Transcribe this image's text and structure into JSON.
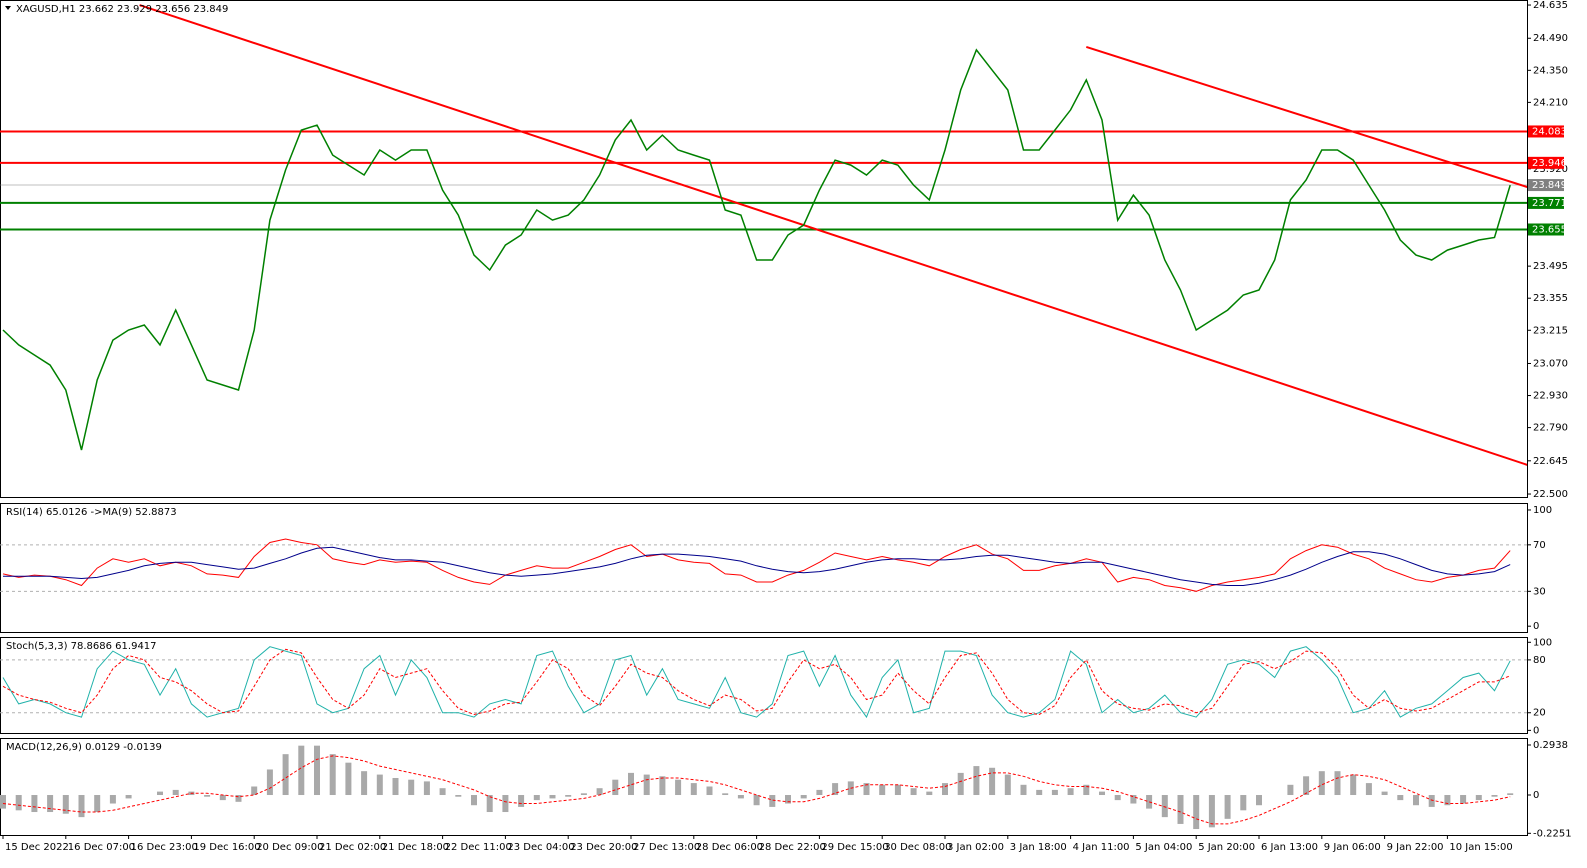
{
  "chart_data": [
    {
      "type": "line",
      "title": "XAGUSD,H1  23.662 23.929 23.656 23.849",
      "categories": [
        "15 Dec 2022",
        null,
        null,
        null,
        "16 Dec 07:00",
        null,
        null,
        null,
        "16 Dec 23:00",
        null,
        null,
        null,
        "19 Dec 16:00",
        null,
        null,
        null,
        "20 Dec 09:00",
        null,
        null,
        null,
        "21 Dec 02:00",
        null,
        null,
        null,
        "21 Dec 18:00",
        null,
        null,
        null,
        "22 Dec 11:00",
        null,
        null,
        null,
        "23 Dec 04:00",
        null,
        null,
        null,
        "23 Dec 20:00",
        null,
        null,
        null,
        "27 Dec 13:00",
        null,
        null,
        null,
        "28 Dec 06:00",
        null,
        null,
        null,
        "28 Dec 22:00",
        null,
        null,
        null,
        "29 Dec 15:00",
        null,
        null,
        null,
        "30 Dec 08:00",
        null,
        null,
        null,
        "3 Jan 02:00",
        null,
        null,
        null,
        "3 Jan 18:00",
        null,
        null,
        null,
        "4 Jan 11:00",
        null,
        null,
        null,
        "5 Jan 04:00",
        null,
        null,
        null,
        "5 Jan 20:00",
        null,
        null,
        null,
        "6 Jan 13:00",
        null,
        null,
        null,
        "9 Jan 06:00",
        null,
        null,
        null,
        "9 Jan 22:00",
        null,
        null,
        null,
        "10 Jan 15:00",
        null,
        null,
        null,
        null
      ],
      "series": [
        {
          "color": "#008000",
          "style": "line",
          "values": [
            23.216,
            23.151,
            23.107,
            23.063,
            22.954,
            22.692,
            22.998,
            23.172,
            23.216,
            23.238,
            23.151,
            23.303,
            23.151,
            22.998,
            22.976,
            22.954,
            23.216,
            23.696,
            23.915,
            24.089,
            24.111,
            23.98,
            23.936,
            23.893,
            24.002,
            23.958,
            24.002,
            24.002,
            23.827,
            23.718,
            23.543,
            23.478,
            23.587,
            23.631,
            23.74,
            23.696,
            23.718,
            23.784,
            23.893,
            24.046,
            24.133,
            24.002,
            24.067,
            24.002,
            23.98,
            23.958,
            23.74,
            23.718,
            23.522,
            23.522,
            23.631,
            23.674,
            23.827,
            23.958,
            23.936,
            23.893,
            23.958,
            23.936,
            23.849,
            23.784,
            24.002,
            24.264,
            24.439,
            24.351,
            24.264,
            24.002,
            24.002,
            24.089,
            24.177,
            24.308,
            24.133,
            23.696,
            23.805,
            23.718,
            23.522,
            23.391,
            23.216,
            23.26,
            23.303,
            23.369,
            23.391,
            23.522,
            23.784,
            23.871,
            24.002,
            24.002,
            23.958,
            23.849,
            23.74,
            23.609,
            23.543,
            23.522,
            23.565,
            23.587,
            23.609,
            23.62,
            23.849
          ]
        }
      ],
      "ylim": [
        22.487,
        24.657
      ],
      "yticks": [
        24.635,
        {
          "value": 24.49,
          "label": "24.490"
        },
        {
          "value": 24.35,
          "label": "24.350"
        },
        {
          "value": 24.21,
          "label": "24.210"
        },
        {
          "value": 23.92,
          "label": "23.920"
        },
        23.495,
        23.355,
        23.215,
        {
          "value": 23.07,
          "label": "23.070"
        },
        {
          "value": 22.93,
          "label": "22.930"
        },
        {
          "value": 22.79,
          "label": "22.790"
        },
        22.645,
        {
          "value": 22.5,
          "label": "22.500"
        }
      ],
      "hlines": [
        {
          "value": 24.083,
          "color": "#ff0000"
        },
        {
          "value": 23.946,
          "color": "#ff0000"
        },
        {
          "value": 23.849,
          "color": "#808080"
        },
        {
          "value": 23.771,
          "color": "#008000"
        },
        {
          "value": 23.655,
          "color": "#008000"
        }
      ],
      "trend_lines": [
        {
          "color": "#ff0000",
          "points": [
            [
              8.7,
              24.635
            ],
            [
              97.1,
              22.627
            ]
          ]
        },
        {
          "color": "#ff0000",
          "points": [
            [
              69,
              24.452
            ],
            [
              97.1,
              23.84
            ]
          ]
        }
      ]
    },
    {
      "type": "line",
      "title": "RSI(14) 65.0126 ->MA(9) 52.8873",
      "ylim": [
        -5,
        106
      ],
      "yticks": [
        100,
        70,
        30,
        0
      ],
      "levels": [
        70,
        30
      ],
      "series": [
        {
          "color": "#ff0000",
          "style": "line",
          "values": [
            45,
            42,
            44,
            43,
            40,
            35,
            50,
            58,
            55,
            58,
            52,
            55,
            52,
            45,
            44,
            42,
            60,
            72,
            75,
            72,
            70,
            58,
            55,
            53,
            57,
            55,
            56,
            55,
            48,
            42,
            38,
            36,
            44,
            48,
            52,
            50,
            50,
            55,
            60,
            66,
            70,
            60,
            62,
            57,
            55,
            54,
            45,
            44,
            38,
            38,
            44,
            48,
            55,
            63,
            60,
            57,
            60,
            57,
            55,
            52,
            60,
            66,
            70,
            62,
            58,
            48,
            48,
            52,
            54,
            58,
            55,
            38,
            42,
            40,
            35,
            33,
            30,
            35,
            38,
            40,
            42,
            45,
            58,
            65,
            70,
            68,
            62,
            58,
            50,
            45,
            40,
            38,
            42,
            44,
            48,
            50,
            65
          ]
        },
        {
          "color": "#00008b",
          "style": "line",
          "values": [
            43,
            43,
            43,
            43,
            42,
            41,
            42,
            45,
            48,
            52,
            54,
            55,
            55,
            53,
            51,
            49,
            50,
            54,
            58,
            63,
            67,
            68,
            65,
            62,
            59,
            57,
            57,
            56,
            55,
            52,
            49,
            46,
            44,
            43,
            44,
            45,
            47,
            49,
            51,
            54,
            58,
            61,
            62,
            62,
            61,
            60,
            58,
            56,
            52,
            49,
            47,
            46,
            47,
            49,
            52,
            55,
            57,
            58,
            58,
            57,
            57,
            58,
            60,
            61,
            61,
            59,
            57,
            55,
            54,
            55,
            55,
            52,
            49,
            46,
            43,
            40,
            38,
            36,
            35,
            35,
            37,
            40,
            44,
            49,
            55,
            60,
            64,
            64,
            62,
            58,
            53,
            48,
            45,
            44,
            45,
            47,
            53
          ]
        }
      ]
    },
    {
      "type": "line",
      "title": "Stoch(5,3,3) 78.8686 61.9417",
      "ylim": [
        -3,
        106
      ],
      "yticks": [
        100,
        80,
        20,
        0
      ],
      "levels": [
        80,
        20
      ],
      "series": [
        {
          "color": "#20b2aa",
          "style": "line",
          "values": [
            60,
            30,
            35,
            30,
            20,
            15,
            70,
            90,
            80,
            75,
            40,
            70,
            30,
            15,
            20,
            25,
            80,
            95,
            90,
            85,
            30,
            20,
            25,
            70,
            85,
            40,
            80,
            60,
            20,
            20,
            15,
            30,
            35,
            30,
            85,
            90,
            50,
            20,
            30,
            80,
            85,
            40,
            70,
            35,
            30,
            25,
            60,
            20,
            15,
            30,
            85,
            90,
            50,
            85,
            40,
            15,
            60,
            80,
            20,
            25,
            90,
            90,
            85,
            40,
            20,
            15,
            20,
            35,
            90,
            75,
            20,
            35,
            20,
            25,
            40,
            20,
            15,
            35,
            75,
            80,
            75,
            60,
            90,
            95,
            80,
            60,
            20,
            25,
            45,
            15,
            25,
            30,
            45,
            60,
            65,
            45,
            79
          ]
        },
        {
          "color": "#ff0000",
          "style": "dashed",
          "values": [
            50,
            40,
            35,
            32,
            25,
            20,
            40,
            70,
            85,
            80,
            60,
            55,
            45,
            30,
            20,
            22,
            50,
            80,
            92,
            88,
            60,
            35,
            25,
            40,
            70,
            60,
            65,
            70,
            45,
            25,
            18,
            22,
            30,
            32,
            55,
            80,
            70,
            40,
            28,
            50,
            75,
            65,
            60,
            45,
            35,
            28,
            40,
            35,
            22,
            25,
            55,
            80,
            70,
            75,
            60,
            35,
            40,
            65,
            45,
            30,
            60,
            85,
            88,
            65,
            35,
            20,
            18,
            28,
            60,
            80,
            45,
            30,
            25,
            23,
            30,
            28,
            20,
            25,
            50,
            75,
            78,
            70,
            78,
            90,
            88,
            70,
            40,
            25,
            35,
            25,
            22,
            25,
            35,
            45,
            55,
            55,
            62
          ]
        }
      ]
    },
    {
      "type": "line",
      "title": "MACD(12,26,9) 0.0129 -0.0139",
      "ylim": [
        -0.235,
        0.335
      ],
      "yticks": [
        0.2938,
        0,
        -0.2251
      ],
      "series": [
        {
          "color": "#a9a9a9",
          "style": "bar",
          "values": [
            -0.08,
            -0.09,
            -0.1,
            -0.1,
            -0.11,
            -0.13,
            -0.1,
            -0.05,
            -0.02,
            0.0,
            0.02,
            0.03,
            0.02,
            -0.01,
            -0.03,
            -0.04,
            0.05,
            0.15,
            0.24,
            0.29,
            0.29,
            0.24,
            0.19,
            0.14,
            0.12,
            0.1,
            0.09,
            0.08,
            0.04,
            -0.01,
            -0.06,
            -0.1,
            -0.1,
            -0.07,
            -0.03,
            -0.02,
            -0.01,
            0.01,
            0.04,
            0.09,
            0.13,
            0.12,
            0.11,
            0.09,
            0.07,
            0.05,
            0.01,
            -0.02,
            -0.06,
            -0.07,
            -0.05,
            -0.02,
            0.03,
            0.07,
            0.08,
            0.07,
            0.06,
            0.06,
            0.04,
            0.02,
            0.07,
            0.13,
            0.17,
            0.16,
            0.12,
            0.06,
            0.03,
            0.03,
            0.04,
            0.06,
            0.02,
            -0.03,
            -0.05,
            -0.08,
            -0.13,
            -0.17,
            -0.2,
            -0.19,
            -0.14,
            -0.09,
            -0.06,
            0.0,
            0.06,
            0.11,
            0.14,
            0.14,
            0.12,
            0.07,
            0.02,
            -0.03,
            -0.06,
            -0.07,
            -0.06,
            -0.05,
            -0.03,
            -0.01,
            0.01
          ]
        },
        {
          "color": "#ff0000",
          "style": "dashed",
          "values": [
            -0.05,
            -0.06,
            -0.07,
            -0.08,
            -0.09,
            -0.1,
            -0.1,
            -0.09,
            -0.07,
            -0.05,
            -0.03,
            -0.01,
            0.01,
            0.01,
            0.0,
            -0.01,
            0.0,
            0.04,
            0.1,
            0.16,
            0.21,
            0.23,
            0.22,
            0.2,
            0.17,
            0.15,
            0.13,
            0.11,
            0.09,
            0.06,
            0.03,
            -0.01,
            -0.04,
            -0.05,
            -0.05,
            -0.04,
            -0.03,
            -0.02,
            0.0,
            0.03,
            0.06,
            0.09,
            0.1,
            0.1,
            0.09,
            0.08,
            0.06,
            0.03,
            0.0,
            -0.03,
            -0.04,
            -0.04,
            -0.02,
            0.01,
            0.04,
            0.06,
            0.06,
            0.06,
            0.05,
            0.04,
            0.05,
            0.08,
            0.11,
            0.13,
            0.13,
            0.11,
            0.08,
            0.06,
            0.05,
            0.05,
            0.04,
            0.02,
            -0.01,
            -0.04,
            -0.07,
            -0.1,
            -0.14,
            -0.17,
            -0.17,
            -0.15,
            -0.12,
            -0.08,
            -0.04,
            0.01,
            0.06,
            0.1,
            0.12,
            0.11,
            0.09,
            0.05,
            0.01,
            -0.03,
            -0.05,
            -0.05,
            -0.04,
            -0.03,
            -0.01
          ]
        }
      ]
    }
  ]
}
